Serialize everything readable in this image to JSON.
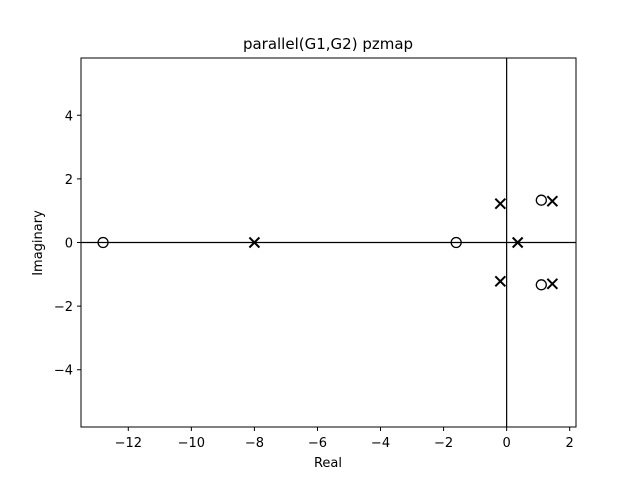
{
  "chart_data": {
    "type": "scatter",
    "title": "parallel(G1,G2) pzmap",
    "xlabel": "Real",
    "ylabel": "Imaginary",
    "xlim": [
      -13.5,
      2.2
    ],
    "ylim": [
      -5.8,
      5.8
    ],
    "xticks": [
      -12,
      -10,
      -8,
      -6,
      -4,
      -2,
      0,
      2
    ],
    "yticks": [
      -4,
      -2,
      0,
      2,
      4
    ],
    "grid": false,
    "series": [
      {
        "marker": "x",
        "points": [
          {
            "x": -8.0,
            "y": 0.0
          },
          {
            "x": 0.35,
            "y": 0.0
          },
          {
            "x": -0.2,
            "y": 1.22
          },
          {
            "x": -0.2,
            "y": -1.22
          },
          {
            "x": 1.45,
            "y": 1.3
          },
          {
            "x": 1.45,
            "y": -1.3
          }
        ]
      },
      {
        "marker": "o",
        "points": [
          {
            "x": -12.8,
            "y": 0.0
          },
          {
            "x": -1.6,
            "y": 0.0
          },
          {
            "x": 1.1,
            "y": 1.33
          },
          {
            "x": 1.1,
            "y": -1.33
          }
        ]
      }
    ]
  }
}
